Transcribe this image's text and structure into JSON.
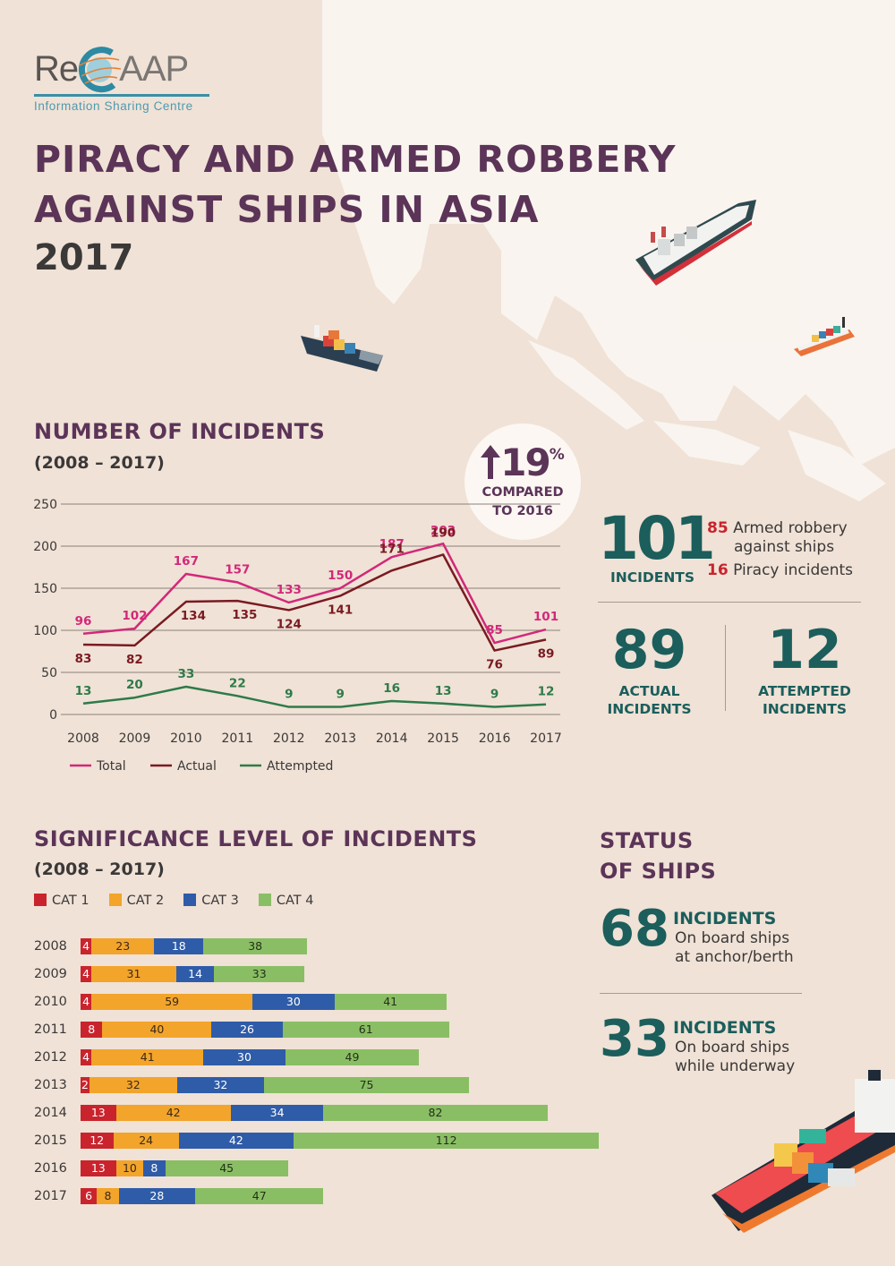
{
  "logo": {
    "name_left": "Re",
    "name_right": "AAP",
    "subtitle": "Information Sharing Centre"
  },
  "header": {
    "title_line1": "PIRACY AND ARMED ROBBERY",
    "title_line2": "AGAINST SHIPS IN ASIA",
    "year": "2017"
  },
  "incidents_section": {
    "title": "NUMBER OF INCIDENTS",
    "subtitle": "(2008 – 2017)",
    "badge": {
      "value": "19",
      "unit": "%",
      "direction": "up-arrow",
      "caption_line1": "COMPARED",
      "caption_line2": "TO 2016"
    }
  },
  "summary": {
    "total": {
      "value": "101",
      "label": "INCIDENTS"
    },
    "armed_robbery": {
      "value": "85",
      "label_line1": "Armed robbery",
      "label_line2": "against ships"
    },
    "piracy": {
      "value": "16",
      "label": "Piracy incidents"
    },
    "actual": {
      "value": "89",
      "label_line1": "ACTUAL",
      "label_line2": "INCIDENTS"
    },
    "attempted": {
      "value": "12",
      "label_line1": "ATTEMPTED",
      "label_line2": "INCIDENTS"
    }
  },
  "significance_section": {
    "title": "SIGNIFICANCE LEVEL OF INCIDENTS",
    "subtitle": "(2008 – 2017)"
  },
  "status_section": {
    "title_line1": "STATUS",
    "title_line2": "OF SHIPS",
    "anchor": {
      "value": "68",
      "label": "INCIDENTS",
      "desc_line1": "On board ships",
      "desc_line2": "at anchor/berth"
    },
    "underway": {
      "value": "33",
      "label": "INCIDENTS",
      "desc_line1": "On board ships",
      "desc_line2": "while underway"
    }
  },
  "colors": {
    "background": "#f0e2d6",
    "title_purple": "#5b3458",
    "teal": "#1b5e5c",
    "total_line": "#d2287a",
    "actual_line": "#7a1a22",
    "attempted_line": "#2e7a4a",
    "cat1": "#c9242d",
    "cat2": "#f3a42b",
    "cat3": "#2f5ca8",
    "cat4": "#8abe64"
  },
  "chart_data": [
    {
      "type": "line",
      "title": "NUMBER OF INCIDENTS (2008 – 2017)",
      "xlabel": "",
      "ylabel": "",
      "x": [
        "2008",
        "2009",
        "2010",
        "2011",
        "2012",
        "2013",
        "2014",
        "2015",
        "2016",
        "2017"
      ],
      "yticks": [
        "0",
        "50",
        "100",
        "150",
        "200",
        "250"
      ],
      "ylim": [
        0,
        250
      ],
      "grid": true,
      "legend_position": "bottom",
      "series": [
        {
          "name": "Total",
          "color": "#d2287a",
          "values": [
            96,
            102,
            167,
            157,
            133,
            150,
            187,
            203,
            85,
            101
          ]
        },
        {
          "name": "Actual",
          "color": "#7a1a22",
          "values": [
            83,
            82,
            134,
            135,
            124,
            141,
            171,
            190,
            76,
            89
          ]
        },
        {
          "name": "Attempted",
          "color": "#2e7a4a",
          "values": [
            13,
            20,
            33,
            22,
            9,
            9,
            16,
            13,
            9,
            12
          ]
        }
      ],
      "annotations": [
        "↑19% COMPARED TO 2016"
      ]
    },
    {
      "type": "bar",
      "orientation": "horizontal",
      "stacked": true,
      "title": "SIGNIFICANCE LEVEL OF INCIDENTS (2008 – 2017)",
      "categories": [
        "2008",
        "2009",
        "2010",
        "2011",
        "2012",
        "2013",
        "2014",
        "2015",
        "2016",
        "2017"
      ],
      "legend_position": "top",
      "series": [
        {
          "name": "CAT 1",
          "color": "#c9242d",
          "values": [
            4,
            4,
            4,
            8,
            4,
            2,
            13,
            12,
            13,
            6
          ]
        },
        {
          "name": "CAT 2",
          "color": "#f3a42b",
          "values": [
            23,
            31,
            59,
            40,
            41,
            32,
            42,
            24,
            10,
            8
          ]
        },
        {
          "name": "CAT 3",
          "color": "#2f5ca8",
          "values": [
            18,
            14,
            30,
            26,
            30,
            32,
            34,
            42,
            8,
            28
          ]
        },
        {
          "name": "CAT 4",
          "color": "#8abe64",
          "values": [
            38,
            33,
            41,
            61,
            49,
            75,
            82,
            112,
            45,
            47
          ]
        }
      ]
    }
  ]
}
